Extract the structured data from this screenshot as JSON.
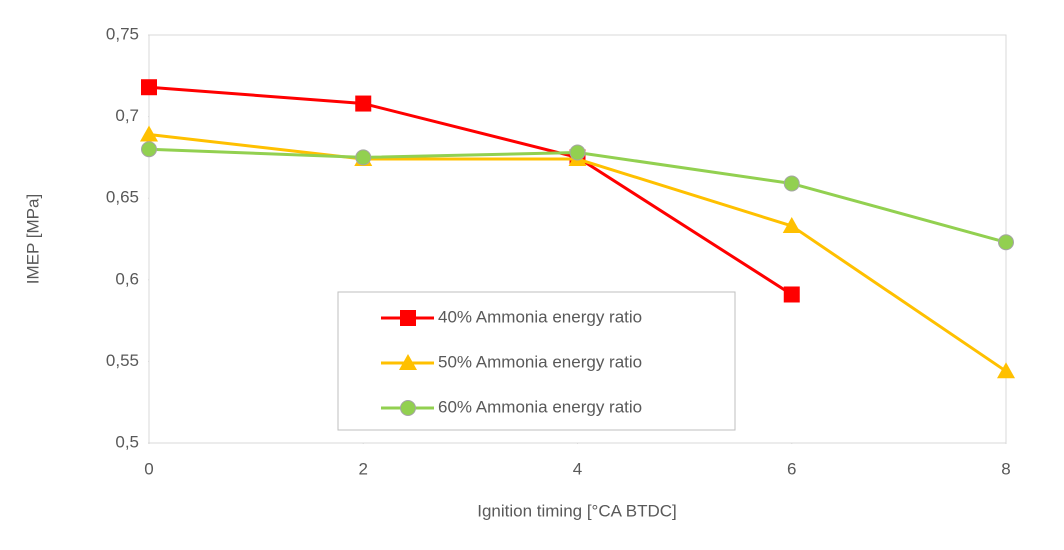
{
  "chart_data": {
    "type": "line",
    "x_label": "Ignition timing [°CA BTDC]",
    "y_label": "IMEP [MPa]",
    "x": [
      0,
      2,
      4,
      6,
      8
    ],
    "series": [
      {
        "name": "40% Ammonia energy ratio",
        "color": "#ff0000",
        "marker": "square",
        "values": [
          0.718,
          0.708,
          0.675,
          0.591,
          null
        ]
      },
      {
        "name": "50% Ammonia energy ratio",
        "color": "#ffc000",
        "marker": "triangle",
        "values": [
          0.689,
          0.674,
          0.674,
          0.633,
          0.544
        ]
      },
      {
        "name": "60% Ammonia energy ratio",
        "color": "#92d050",
        "marker": "circle",
        "values": [
          0.68,
          0.675,
          0.678,
          0.659,
          0.623
        ]
      }
    ],
    "xlim": [
      0,
      8
    ],
    "xticks": [
      0,
      2,
      4,
      6,
      8
    ],
    "ylim": [
      0.5,
      0.75
    ],
    "yticks": [
      {
        "value": 0.5,
        "label": "0,5"
      },
      {
        "value": 0.55,
        "label": "0,55"
      },
      {
        "value": 0.6,
        "label": "0,6"
      },
      {
        "value": 0.65,
        "label": "0,65"
      },
      {
        "value": 0.7,
        "label": "0,7"
      },
      {
        "value": 0.75,
        "label": "0,75"
      }
    ],
    "legend": "center"
  }
}
